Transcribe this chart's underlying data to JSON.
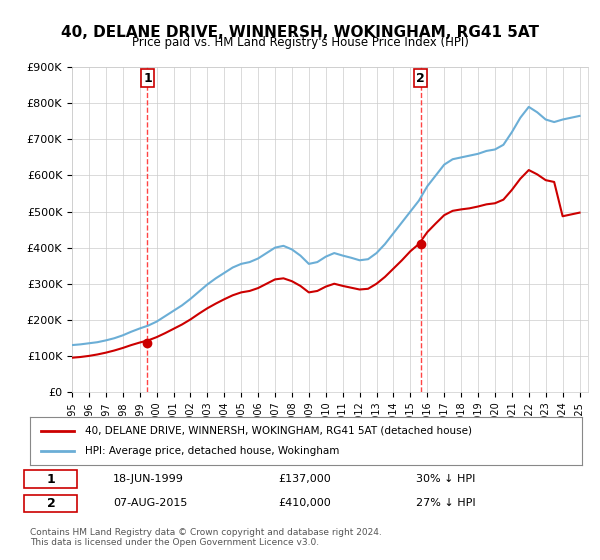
{
  "title": "40, DELANE DRIVE, WINNERSH, WOKINGHAM, RG41 5AT",
  "subtitle": "Price paid vs. HM Land Registry's House Price Index (HPI)",
  "ylim": [
    0,
    900000
  ],
  "yticks": [
    0,
    100000,
    200000,
    300000,
    400000,
    500000,
    600000,
    700000,
    800000,
    900000
  ],
  "ytick_labels": [
    "£0",
    "£100K",
    "£200K",
    "£300K",
    "£400K",
    "£500K",
    "£600K",
    "£700K",
    "£800K",
    "£900K"
  ],
  "sale1": {
    "date": "1999-06-18",
    "price": 137000,
    "label": "1",
    "x": 1999.46
  },
  "sale2": {
    "date": "2015-08-07",
    "price": 410000,
    "label": "2",
    "x": 2015.6
  },
  "hpi_color": "#6baed6",
  "price_color": "#cc0000",
  "vline_color": "#ff4444",
  "legend_property_label": "40, DELANE DRIVE, WINNERSH, WOKINGHAM, RG41 5AT (detached house)",
  "legend_hpi_label": "HPI: Average price, detached house, Wokingham",
  "table_row1": [
    "1",
    "18-JUN-1999",
    "£137,000",
    "30% ↓ HPI"
  ],
  "table_row2": [
    "2",
    "07-AUG-2015",
    "£410,000",
    "27% ↓ HPI"
  ],
  "footnote": "Contains HM Land Registry data © Crown copyright and database right 2024.\nThis data is licensed under the Open Government Licence v3.0.",
  "background_color": "#ffffff"
}
